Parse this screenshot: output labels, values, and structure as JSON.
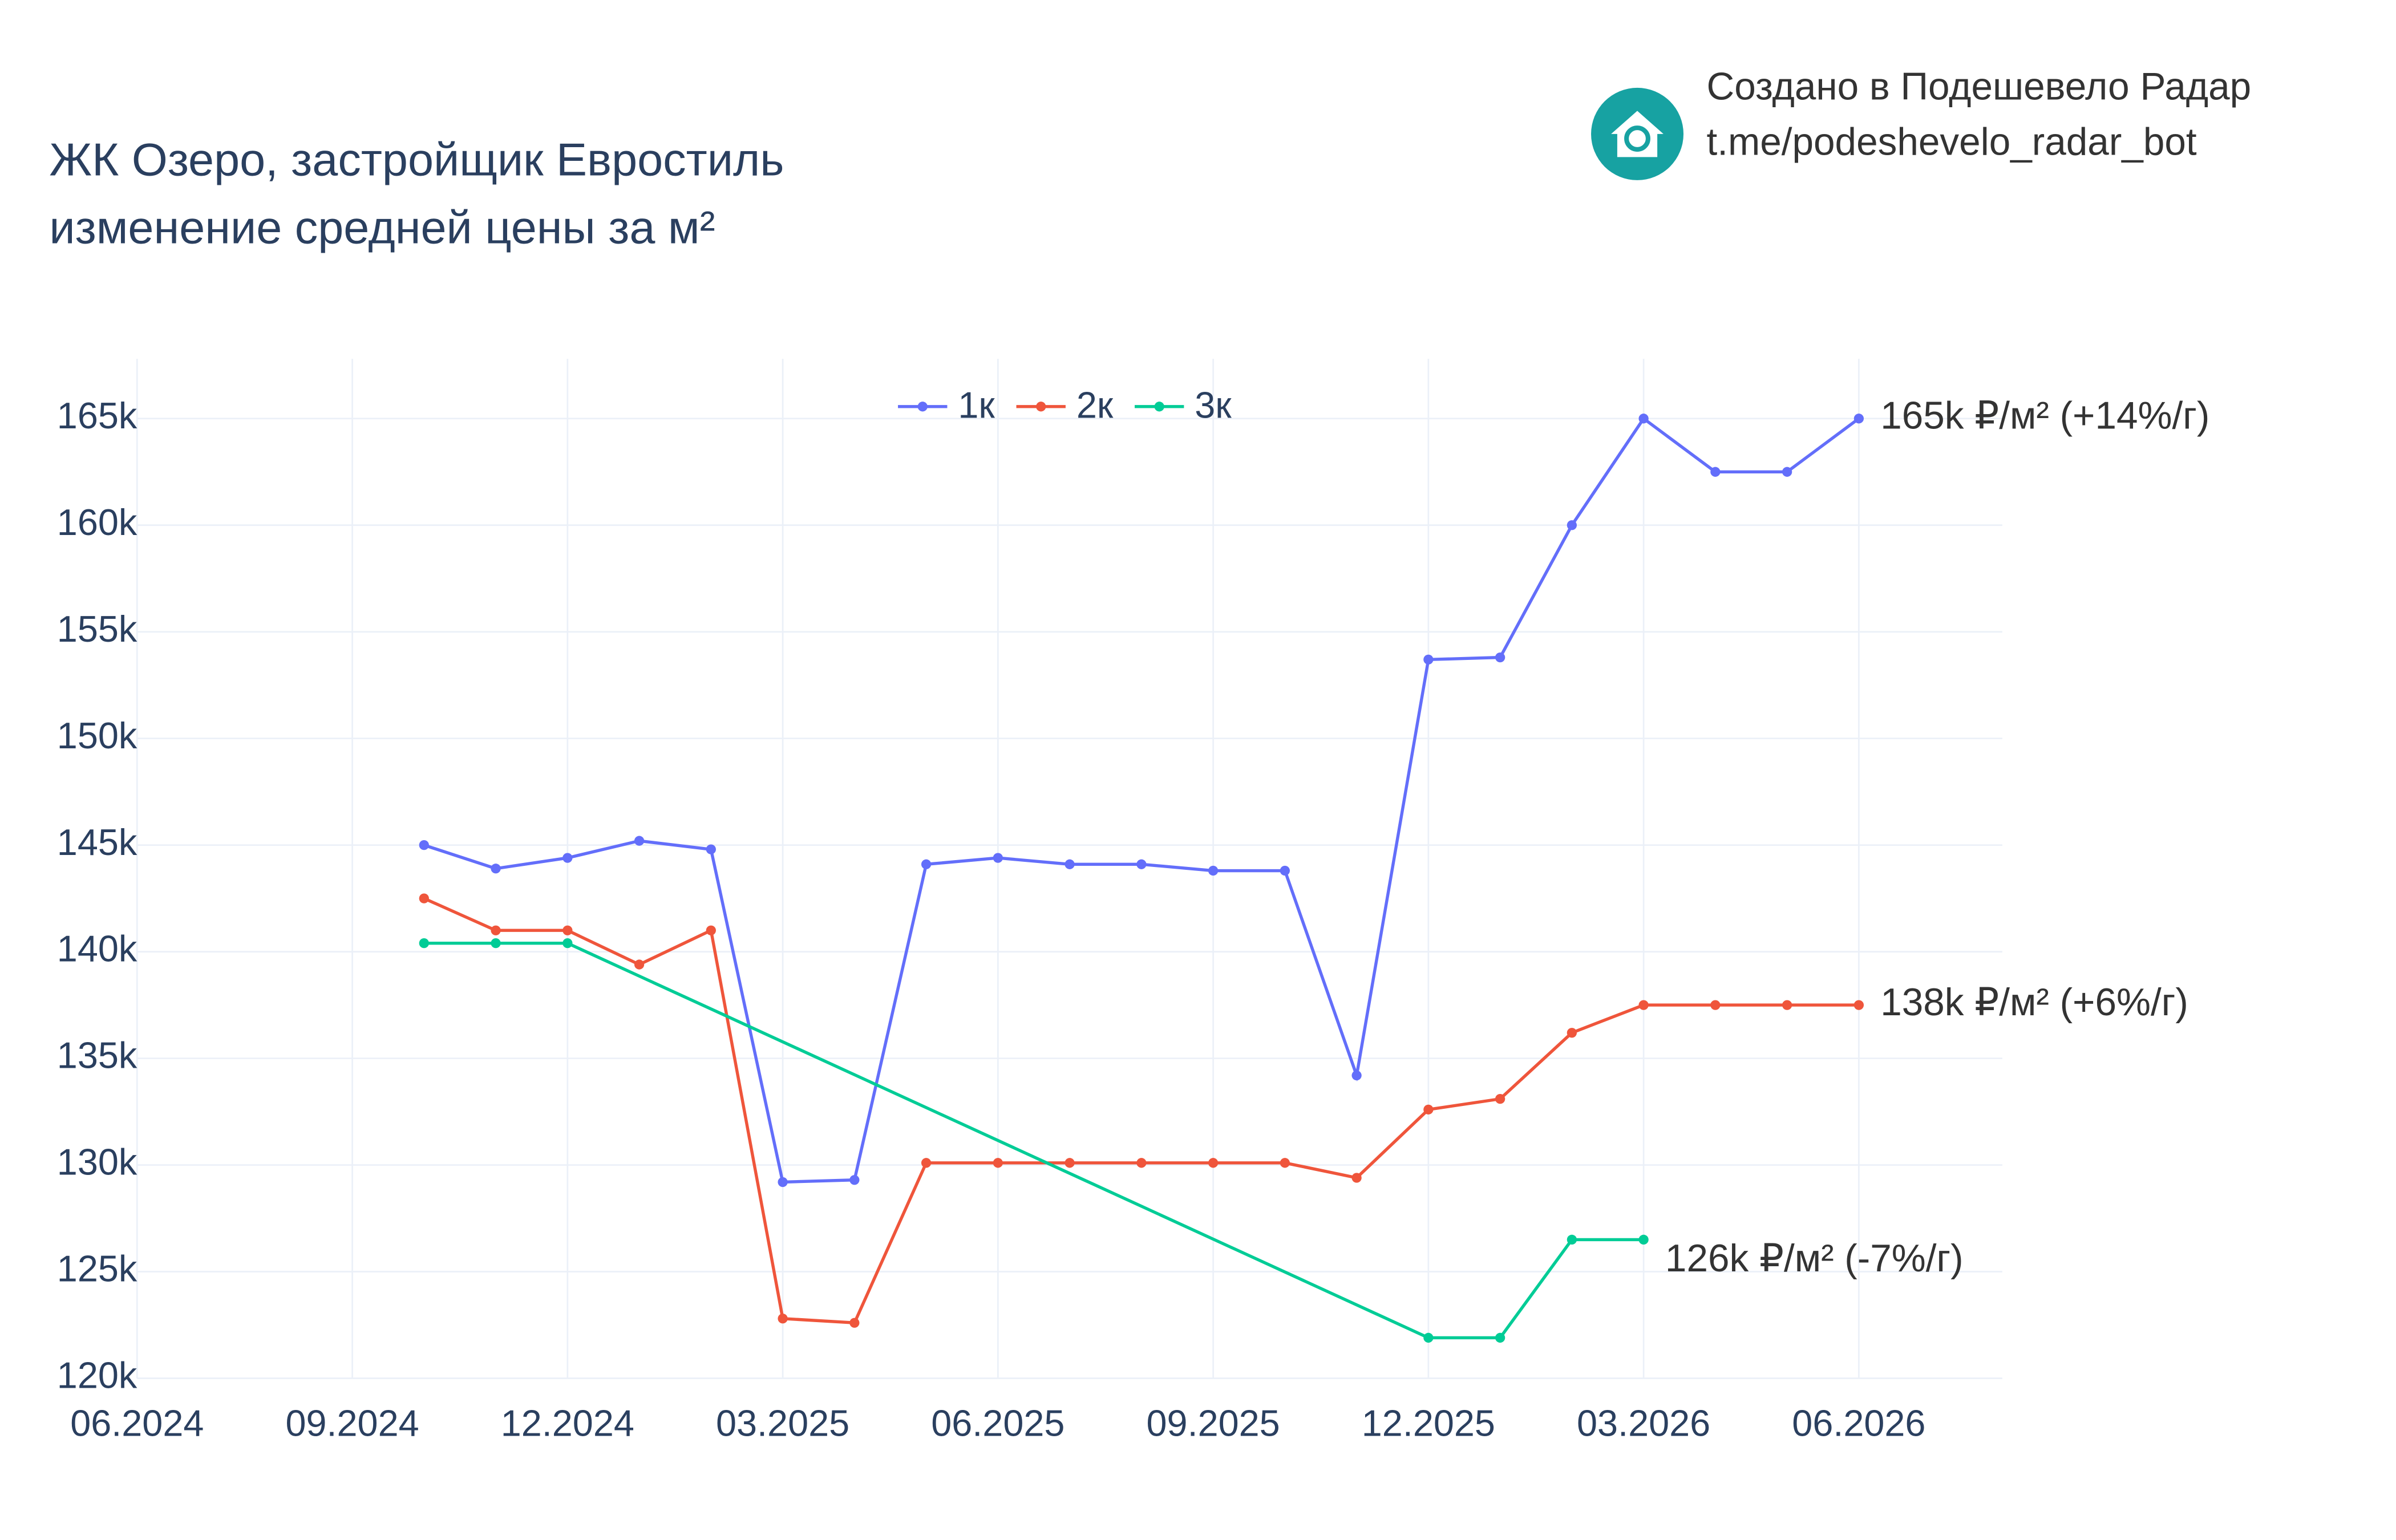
{
  "chart_data": {
    "type": "line",
    "title": "ЖК Озеро, застройщик Евростиль",
    "subtitle": "изменение средней цены за м²",
    "credit": {
      "line1": "Создано в Подешевело Радар",
      "line2": "t.me/podeshevelo_radar_bot"
    },
    "xlim": [
      "06.2024",
      "08.2026"
    ],
    "xticks": [
      "06.2024",
      "09.2024",
      "12.2024",
      "03.2025",
      "06.2025",
      "09.2025",
      "12.2025",
      "03.2026",
      "06.2026"
    ],
    "ylim": [
      120000,
      167800
    ],
    "yticks": [
      {
        "value": 120000,
        "label": "120k"
      },
      {
        "value": 125000,
        "label": "125k"
      },
      {
        "value": 130000,
        "label": "130k"
      },
      {
        "value": 135000,
        "label": "135k"
      },
      {
        "value": 140000,
        "label": "140k"
      },
      {
        "value": 145000,
        "label": "145k"
      },
      {
        "value": 150000,
        "label": "150k"
      },
      {
        "value": 155000,
        "label": "155k"
      },
      {
        "value": 160000,
        "label": "160k"
      },
      {
        "value": 165000,
        "label": "165k"
      }
    ],
    "grid": true,
    "legend": "top",
    "series": [
      {
        "name": "1к",
        "color": "#636efa",
        "x": [
          "10.2024",
          "11.2024",
          "12.2024",
          "01.2025",
          "02.2025",
          "03.2025",
          "04.2025",
          "05.2025",
          "06.2025",
          "07.2025",
          "08.2025",
          "09.2025",
          "10.2025",
          "11.2025",
          "12.2025",
          "01.2026",
          "02.2026",
          "03.2026",
          "04.2026",
          "05.2026",
          "06.2026"
        ],
        "values": [
          145000,
          143900,
          144400,
          145200,
          144800,
          129200,
          129300,
          144100,
          144400,
          144100,
          144100,
          143800,
          143800,
          134200,
          153700,
          153800,
          160000,
          165000,
          162500,
          162500,
          165000
        ],
        "annotation": "165k ₽/м² (+14%/г)"
      },
      {
        "name": "2к",
        "color": "#ef553b",
        "x": [
          "10.2024",
          "11.2024",
          "12.2024",
          "01.2025",
          "02.2025",
          "03.2025",
          "04.2025",
          "05.2025",
          "06.2025",
          "07.2025",
          "08.2025",
          "09.2025",
          "10.2025",
          "11.2025",
          "12.2025",
          "01.2026",
          "02.2026",
          "03.2026",
          "04.2026",
          "05.2026",
          "06.2026"
        ],
        "values": [
          142500,
          141000,
          141000,
          139400,
          141000,
          122800,
          122600,
          130100,
          130100,
          130100,
          130100,
          130100,
          130100,
          129400,
          132600,
          133100,
          136200,
          137500,
          137500,
          137500,
          137500
        ],
        "annotation": "138k ₽/м² (+6%/г)"
      },
      {
        "name": "3к",
        "color": "#00cc96",
        "x": [
          "10.2024",
          "11.2024",
          "12.2024",
          "12.2025",
          "01.2026",
          "02.2026",
          "03.2026"
        ],
        "values": [
          140400,
          140400,
          140400,
          121900,
          121900,
          126500,
          126500
        ],
        "annotation": "126k ₽/м² (-7%/г)"
      }
    ]
  }
}
